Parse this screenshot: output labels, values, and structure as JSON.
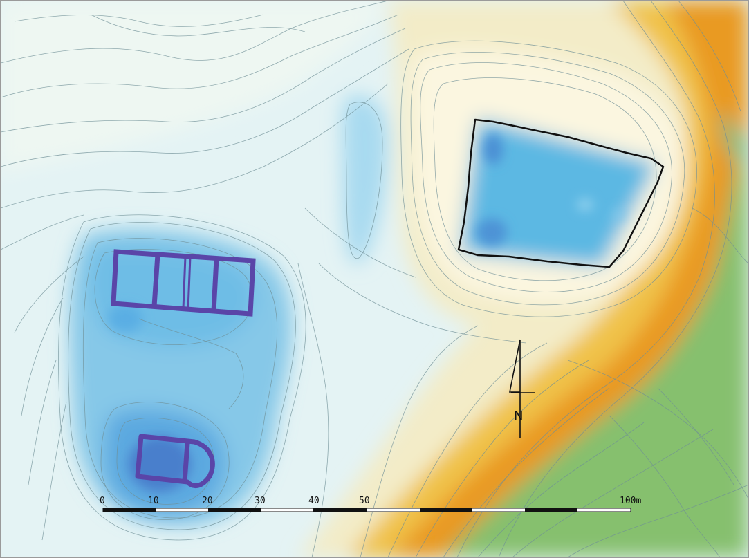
{
  "map": {
    "colors": {
      "low_blue": "#5aa9dc",
      "mid_blue": "#9fd3ec",
      "pale_cyan": "#d8eef2",
      "cream": "#f5efd2",
      "yellow": "#f2c64a",
      "orange": "#e9951a",
      "green": "#7cbd6a",
      "structure": "#5a45a8",
      "enclosure_outline": "#111111",
      "contour": "#6f8f96"
    },
    "north_arrow": {
      "label": "N"
    },
    "scale_bar": {
      "ticks": [
        {
          "label": "0"
        },
        {
          "label": "10"
        },
        {
          "label": "20"
        },
        {
          "label": "30"
        },
        {
          "label": "40"
        },
        {
          "label": "50"
        },
        {
          "label": "100m"
        }
      ]
    }
  }
}
